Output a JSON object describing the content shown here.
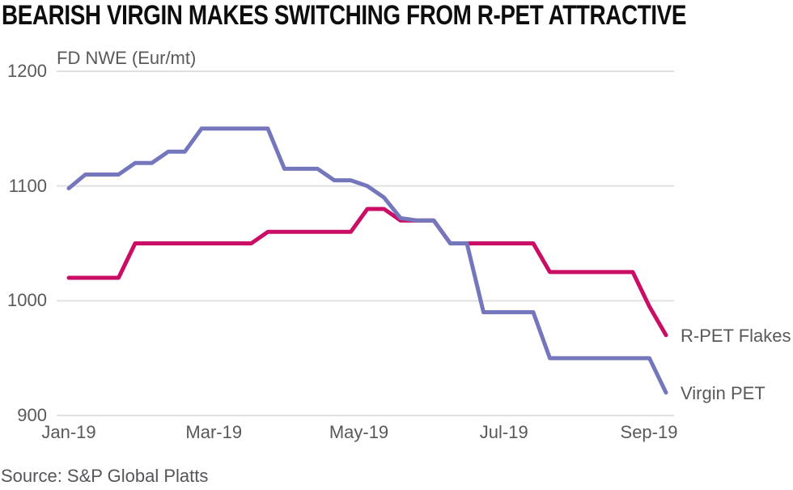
{
  "title": "BEARISH VIRGIN MAKES SWITCHING FROM R-PET ATTRACTIVE",
  "source": "Source: S&P Global Platts",
  "colors": {
    "title_text": "#0d0d0d",
    "axis_text": "#58595b",
    "gridline": "#e0e0e1",
    "rpet_flakes_line": "#ca0d65",
    "virgin_pet_line": "#7477bc"
  },
  "chart_data": {
    "type": "line",
    "title": "BEARISH VIRGIN MAKES SWITCHING FROM R-PET ATTRACTIVE",
    "ylabel": "FD NWE (Eur/mt)",
    "ylim": [
      900,
      1200
    ],
    "y_ticks": [
      1200,
      1100,
      1000,
      900
    ],
    "x_tick_labels": [
      "Jan-19",
      "Mar-19",
      "May-19",
      "Jul-19",
      "Sep-19"
    ],
    "frequency": "weekly assessments, Jan-19 through mid-Sep-19",
    "grid": "horizontal",
    "legend_position": "labels-at-line-ends",
    "series": [
      {
        "name": "R-PET Flakes",
        "color": "#ca0d65",
        "values": [
          1020,
          1020,
          1020,
          1020,
          1050,
          1050,
          1050,
          1050,
          1050,
          1050,
          1050,
          1050,
          1060,
          1060,
          1060,
          1060,
          1060,
          1060,
          1080,
          1080,
          1070,
          1070,
          1070,
          1050,
          1050,
          1050,
          1050,
          1050,
          1050,
          1025,
          1025,
          1025,
          1025,
          1025,
          1025,
          995,
          970
        ]
      },
      {
        "name": "Virgin PET",
        "color": "#7477bc",
        "values": [
          1098,
          1110,
          1110,
          1110,
          1120,
          1120,
          1130,
          1130,
          1150,
          1150,
          1150,
          1150,
          1150,
          1115,
          1115,
          1115,
          1105,
          1105,
          1100,
          1090,
          1072,
          1070,
          1070,
          1050,
          1050,
          990,
          990,
          990,
          990,
          950,
          950,
          950,
          950,
          950,
          950,
          950,
          920
        ]
      }
    ]
  }
}
